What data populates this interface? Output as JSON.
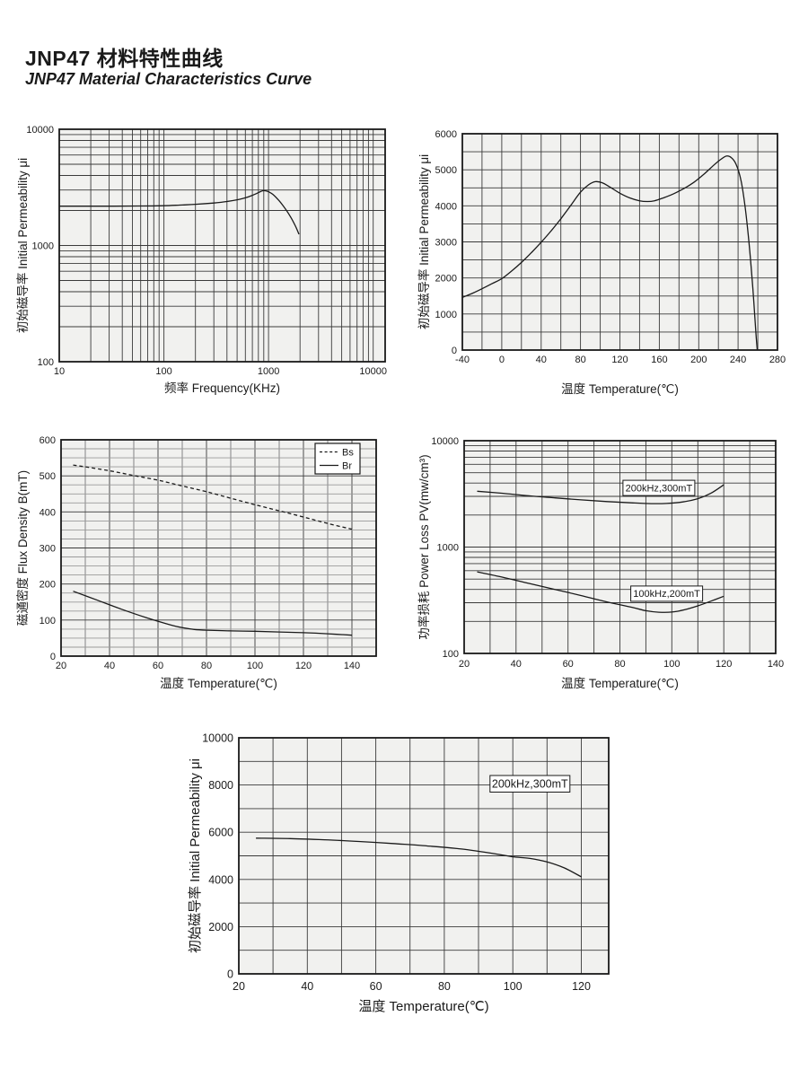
{
  "page": {
    "title_cn": "JNP47 材料特性曲线",
    "title_en": "JNP47   Material Characteristics Curve",
    "ink_color": "#1a1a1a",
    "plot_bg_color": "#f1f1ef"
  },
  "chart_data": [
    {
      "id": "permeability-vs-frequency",
      "type": "line",
      "x": {
        "label": "频率 Frequency(KHz)",
        "scale": "log",
        "range": [
          10,
          13000
        ],
        "ticks": [
          {
            "v": 10,
            "t": "10"
          },
          {
            "v": 100,
            "t": "100"
          },
          {
            "v": 1000,
            "t": "1000"
          },
          {
            "v": 10000,
            "t": "10000"
          }
        ]
      },
      "y": {
        "label": "初始磁导率 Initial Permeability μi",
        "scale": "log",
        "range": [
          100,
          10000
        ],
        "ticks": [
          {
            "v": 100,
            "t": "100"
          },
          {
            "v": 1000,
            "t": "1000"
          },
          {
            "v": 10000,
            "t": "10000"
          }
        ]
      },
      "series": [
        {
          "name": "initial permeability",
          "dash": null,
          "points": [
            [
              10,
              2180
            ],
            [
              30,
              2180
            ],
            [
              60,
              2185
            ],
            [
              100,
              2200
            ],
            [
              150,
              2230
            ],
            [
              200,
              2260
            ],
            [
              300,
              2320
            ],
            [
              400,
              2390
            ],
            [
              500,
              2470
            ],
            [
              600,
              2570
            ],
            [
              700,
              2700
            ],
            [
              800,
              2850
            ],
            [
              880,
              2960
            ],
            [
              950,
              2950
            ],
            [
              1000,
              2900
            ],
            [
              1100,
              2750
            ],
            [
              1250,
              2450
            ],
            [
              1400,
              2150
            ],
            [
              1600,
              1800
            ],
            [
              1800,
              1480
            ],
            [
              1950,
              1250
            ]
          ]
        }
      ]
    },
    {
      "id": "permeability-vs-temperature",
      "type": "line",
      "x": {
        "label": "温度 Temperature(℃)",
        "scale": "linear",
        "range": [
          -40,
          280
        ],
        "minor_step": 20,
        "ticks": [
          {
            "v": -40,
            "t": "-40"
          },
          {
            "v": 0,
            "t": "0"
          },
          {
            "v": 40,
            "t": "40"
          },
          {
            "v": 80,
            "t": "80"
          },
          {
            "v": 120,
            "t": "120"
          },
          {
            "v": 160,
            "t": "160"
          },
          {
            "v": 200,
            "t": "200"
          },
          {
            "v": 240,
            "t": "240"
          },
          {
            "v": 280,
            "t": "280"
          }
        ]
      },
      "y": {
        "label": "初始磁导率 Initial Permeability  μi",
        "scale": "linear",
        "range": [
          0,
          6000
        ],
        "minor_step": 500,
        "ticks": [
          {
            "v": 0,
            "t": "0"
          },
          {
            "v": 1000,
            "t": "1000"
          },
          {
            "v": 2000,
            "t": "2000"
          },
          {
            "v": 3000,
            "t": "3000"
          },
          {
            "v": 4000,
            "t": "4000"
          },
          {
            "v": 5000,
            "t": "5000"
          },
          {
            "v": 6000,
            "t": "6000"
          }
        ]
      },
      "series": [
        {
          "name": "initial permeability",
          "dash": null,
          "points": [
            [
              -40,
              1460
            ],
            [
              -30,
              1570
            ],
            [
              -20,
              1700
            ],
            [
              -10,
              1840
            ],
            [
              0,
              1980
            ],
            [
              10,
              2190
            ],
            [
              20,
              2430
            ],
            [
              30,
              2700
            ],
            [
              40,
              2990
            ],
            [
              50,
              3300
            ],
            [
              60,
              3640
            ],
            [
              70,
              4010
            ],
            [
              80,
              4380
            ],
            [
              88,
              4580
            ],
            [
              95,
              4670
            ],
            [
              102,
              4640
            ],
            [
              110,
              4520
            ],
            [
              120,
              4350
            ],
            [
              130,
              4220
            ],
            [
              140,
              4140
            ],
            [
              148,
              4120
            ],
            [
              155,
              4140
            ],
            [
              165,
              4230
            ],
            [
              175,
              4340
            ],
            [
              185,
              4480
            ],
            [
              195,
              4650
            ],
            [
              205,
              4870
            ],
            [
              215,
              5120
            ],
            [
              222,
              5280
            ],
            [
              228,
              5380
            ],
            [
              233,
              5340
            ],
            [
              238,
              5150
            ],
            [
              243,
              4700
            ],
            [
              247,
              4000
            ],
            [
              251,
              3000
            ],
            [
              255,
              1700
            ],
            [
              258,
              500
            ],
            [
              259.5,
              0
            ]
          ]
        }
      ]
    },
    {
      "id": "flux-density-vs-temperature",
      "type": "line",
      "x": {
        "label": "温度 Temperature(℃)",
        "scale": "linear",
        "range": [
          20,
          150
        ],
        "minor_step": 10,
        "minor_color": "#787878",
        "ticks": [
          {
            "v": 20,
            "t": "20"
          },
          {
            "v": 40,
            "t": "40"
          },
          {
            "v": 60,
            "t": "60"
          },
          {
            "v": 80,
            "t": "80"
          },
          {
            "v": 100,
            "t": "100"
          },
          {
            "v": 120,
            "t": "120"
          },
          {
            "v": 140,
            "t": "140"
          }
        ]
      },
      "y": {
        "label": "磁通密度  Flux Density B(mT)",
        "scale": "linear",
        "range": [
          0,
          600
        ],
        "minor_step": 25,
        "minor_color": "#9a9a9a",
        "ticks": [
          {
            "v": 0,
            "t": "0"
          },
          {
            "v": 100,
            "t": "100"
          },
          {
            "v": 200,
            "t": "200"
          },
          {
            "v": 300,
            "t": "300"
          },
          {
            "v": 400,
            "t": "400"
          },
          {
            "v": 500,
            "t": "500"
          },
          {
            "v": 600,
            "t": "600"
          }
        ]
      },
      "legend": {
        "position": "top-right",
        "entries": [
          {
            "label": "Bs",
            "dash": "3 2.6"
          },
          {
            "label": "Br",
            "dash": null
          }
        ]
      },
      "series": [
        {
          "name": "Bs",
          "dash": "4 3",
          "points": [
            [
              25,
              530
            ],
            [
              30,
              525
            ],
            [
              40,
              514
            ],
            [
              50,
              501
            ],
            [
              60,
              488
            ],
            [
              70,
              472
            ],
            [
              80,
              456
            ],
            [
              90,
              438
            ],
            [
              100,
              420
            ],
            [
              110,
              403
            ],
            [
              120,
              386
            ],
            [
              130,
              368
            ],
            [
              140,
              352
            ]
          ]
        },
        {
          "name": "Br",
          "dash": null,
          "points": [
            [
              25,
              180
            ],
            [
              35,
              155
            ],
            [
              45,
              130
            ],
            [
              55,
              107
            ],
            [
              65,
              87
            ],
            [
              70,
              79
            ],
            [
              75,
              74
            ],
            [
              80,
              72
            ],
            [
              90,
              70
            ],
            [
              100,
              69
            ],
            [
              110,
              67
            ],
            [
              120,
              65
            ],
            [
              130,
              62
            ],
            [
              140,
              58
            ]
          ]
        }
      ]
    },
    {
      "id": "power-loss-vs-temperature",
      "type": "line",
      "x": {
        "label": "温度 Temperature(℃)",
        "scale": "linear",
        "range": [
          20,
          140
        ],
        "minor_step": 10,
        "ticks": [
          {
            "v": 20,
            "t": "20"
          },
          {
            "v": 40,
            "t": "40"
          },
          {
            "v": 60,
            "t": "60"
          },
          {
            "v": 80,
            "t": "80"
          },
          {
            "v": 100,
            "t": "100"
          },
          {
            "v": 120,
            "t": "120"
          },
          {
            "v": 140,
            "t": "140"
          }
        ]
      },
      "y": {
        "label": "功率损耗  Power Loss PV(mw/cm³)",
        "scale": "log",
        "range": [
          100,
          10000
        ],
        "ticks": [
          {
            "v": 100,
            "t": "100"
          },
          {
            "v": 1000,
            "t": "1000"
          },
          {
            "v": 10000,
            "t": "10000"
          }
        ]
      },
      "annotations": [
        {
          "text": "200kHz,300mT",
          "x": 95,
          "y": 3600
        },
        {
          "text": "100kHz,200mT",
          "x": 98,
          "y": 365
        }
      ],
      "series": [
        {
          "name": "200kHz,300mT",
          "dash": null,
          "points": [
            [
              25,
              3350
            ],
            [
              35,
              3200
            ],
            [
              45,
              3030
            ],
            [
              55,
              2900
            ],
            [
              65,
              2780
            ],
            [
              75,
              2680
            ],
            [
              85,
              2600
            ],
            [
              92,
              2560
            ],
            [
              98,
              2570
            ],
            [
              104,
              2650
            ],
            [
              110,
              2850
            ],
            [
              115,
              3200
            ],
            [
              120,
              3850
            ]
          ]
        },
        {
          "name": "100kHz,200mT",
          "dash": null,
          "points": [
            [
              25,
              585
            ],
            [
              35,
              520
            ],
            [
              45,
              455
            ],
            [
              55,
              400
            ],
            [
              65,
              350
            ],
            [
              75,
              305
            ],
            [
              85,
              270
            ],
            [
              90,
              252
            ],
            [
              95,
              244
            ],
            [
              100,
              245
            ],
            [
              105,
              258
            ],
            [
              110,
              280
            ],
            [
              115,
              310
            ],
            [
              120,
              345
            ]
          ]
        }
      ]
    },
    {
      "id": "permeability-vs-temperature-200khz",
      "type": "line",
      "x": {
        "label": "温度 Temperature(℃)",
        "scale": "linear",
        "range": [
          20,
          128
        ],
        "minor_step": 10,
        "ticks": [
          {
            "v": 20,
            "t": "20"
          },
          {
            "v": 40,
            "t": "40"
          },
          {
            "v": 60,
            "t": "60"
          },
          {
            "v": 80,
            "t": "80"
          },
          {
            "v": 100,
            "t": "100"
          },
          {
            "v": 120,
            "t": "120"
          }
        ]
      },
      "y": {
        "label": "初始磁导率  Initial  Permeability μi",
        "scale": "linear",
        "range": [
          0,
          10000
        ],
        "minor_step": 1000,
        "ticks": [
          {
            "v": 0,
            "t": "0"
          },
          {
            "v": 2000,
            "t": "2000"
          },
          {
            "v": 4000,
            "t": "4000"
          },
          {
            "v": 6000,
            "t": "6000"
          },
          {
            "v": 8000,
            "t": "8000"
          },
          {
            "v": 10000,
            "t": "10000"
          }
        ]
      },
      "annotations": [
        {
          "text": "200kHz,300mT",
          "x": 105,
          "y": 8050
        }
      ],
      "series": [
        {
          "name": "initial permeability",
          "dash": null,
          "points": [
            [
              25,
              5750
            ],
            [
              35,
              5730
            ],
            [
              45,
              5680
            ],
            [
              55,
              5610
            ],
            [
              65,
              5520
            ],
            [
              75,
              5420
            ],
            [
              85,
              5290
            ],
            [
              95,
              5080
            ],
            [
              100,
              4960
            ],
            [
              105,
              4890
            ],
            [
              110,
              4740
            ],
            [
              115,
              4490
            ],
            [
              120,
              4110
            ]
          ]
        }
      ]
    }
  ]
}
